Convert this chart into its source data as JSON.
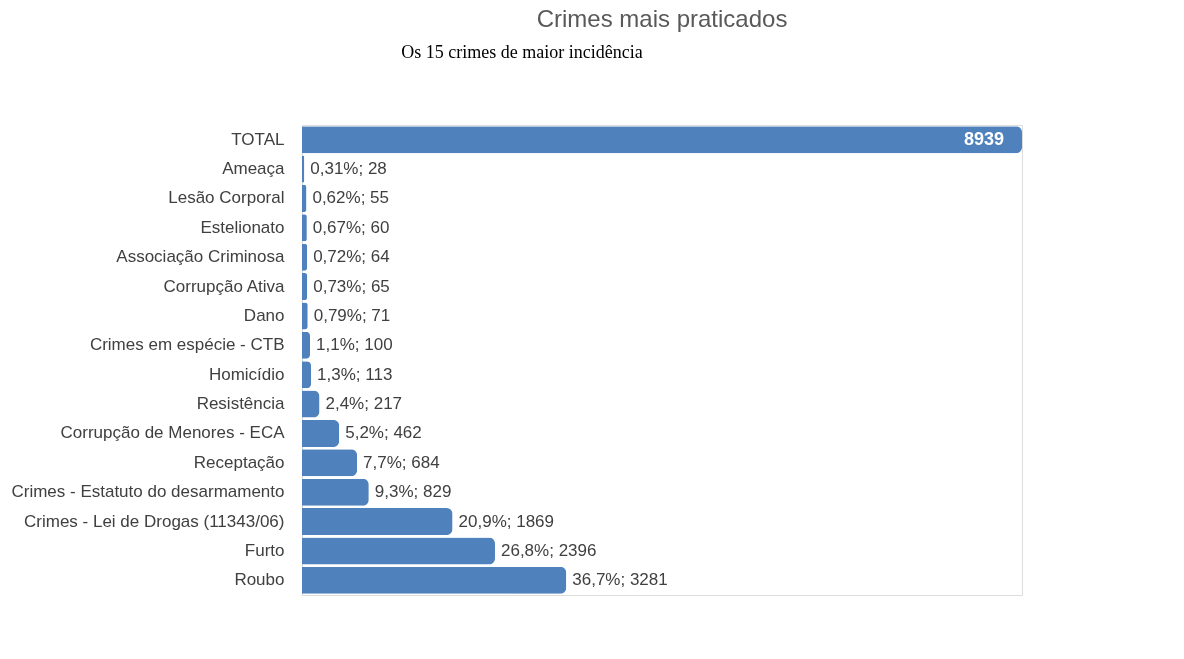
{
  "chart_data": {
    "type": "bar",
    "orientation": "horizontal",
    "title": "Crimes mais praticados",
    "annotations": [
      "Os 15 crimes de maior incidência"
    ],
    "categories": [
      "TOTAL",
      "Ameaça",
      "Lesão Corporal",
      "Estelionato",
      "Associação Criminosa",
      "Corrupção Ativa",
      "Dano",
      "Crimes em espécie - CTB",
      "Homicídio",
      "Resistência",
      "Corrupção de Menores - ECA",
      "Receptação",
      "Crimes - Estatuto do desarmamento",
      "Crimes - Lei de Drogas (11343/06)",
      "Furto",
      "Roubo"
    ],
    "values": [
      8939,
      28,
      55,
      60,
      64,
      65,
      71,
      100,
      113,
      217,
      462,
      684,
      829,
      1869,
      2396,
      3281
    ],
    "value_labels": [
      "8939",
      "0,31%; 28",
      "0,62%; 55",
      "0,67%; 60",
      "0,72%; 64",
      "0,73%; 65",
      "0,79%; 71",
      "1,1%; 100",
      "1,3%; 113",
      "2,4%; 217",
      "5,2%; 462",
      "7,7%; 684",
      "9,3%; 829",
      "20,9%; 1869",
      "26,8%; 2396",
      "36,7%; 3281"
    ],
    "color": "#4f81bd",
    "grid": false
  }
}
